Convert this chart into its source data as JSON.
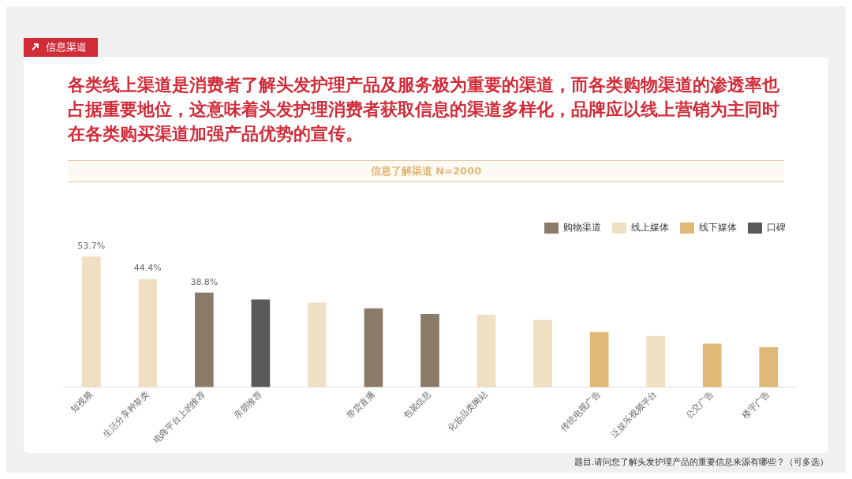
{
  "chart_data": {
    "type": "bar",
    "title": "各类线上渠道是消费者了解头发护理产品及服务极为重要的渠道，而各类购物渠道的渗透率也占据重要地位，这意味着头发护理消费者获取信息的渠道多样化，品牌应以线上营销为主同时在各类购买渠道加强产品优势的宣传。",
    "subtitle": "信息了解渠道 N=2000",
    "categories": [
      "短视频",
      "生活分享种草类",
      "电商平台上的推荐",
      "亲朋推荐",
      null,
      "带货直播",
      "包装信息",
      "化妆品类网站",
      null,
      "传统电视广告",
      "泛娱乐视频平台",
      "公交广告",
      "楼宇广告"
    ],
    "series": [
      {
        "name": "购物渠道",
        "color": "#8a7b69",
        "values": [
          null,
          null,
          38.8,
          null,
          null,
          32.3,
          30.0,
          null,
          null,
          null,
          null,
          null,
          null
        ],
        "value_labels": [
          null,
          null,
          "38.8%",
          null,
          null,
          null,
          null,
          null,
          null,
          null,
          null,
          null,
          null
        ]
      },
      {
        "name": "线上媒体",
        "color": "#efe0c3",
        "values": [
          53.7,
          44.4,
          null,
          null,
          34.7,
          null,
          null,
          29.6,
          27.5,
          null,
          20.9,
          null,
          null
        ],
        "value_labels": [
          "53.7%",
          "44.4%",
          null,
          null,
          null,
          null,
          null,
          null,
          null,
          null,
          null,
          null,
          null
        ]
      },
      {
        "name": "线下媒体",
        "color": "#e0b877",
        "values": [
          null,
          null,
          null,
          null,
          null,
          null,
          null,
          null,
          null,
          22.5,
          null,
          17.8,
          16.3
        ]
      },
      {
        "name": "口碑",
        "color": "#5a5a5a",
        "values": [
          null,
          null,
          null,
          36.0,
          null,
          null,
          null,
          null,
          null,
          null,
          null,
          null,
          null
        ]
      }
    ],
    "legend": "top right",
    "grid": false,
    "tick_labels": "x",
    "annotations": [
      "信息渠道",
      "题目.请问您了解头发护理产品的重要信息来源有哪些？（可多选）"
    ]
  }
}
